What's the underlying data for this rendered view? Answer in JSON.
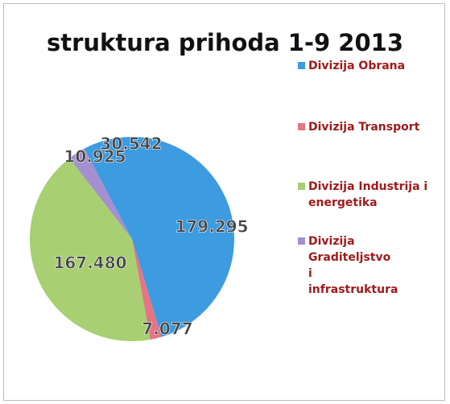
{
  "chart_data": {
    "type": "pie",
    "title": "struktura prihoda 1-9 2013",
    "categories": [
      "Divizija Obrana",
      "Divizija Transport",
      "Divizija Industrija i energetika",
      "Divizija Graditeljstvo i infrastruktura",
      null
    ],
    "values": [
      179295,
      7077,
      167480,
      10925,
      30542
    ],
    "value_labels": [
      "179.295",
      "7.077",
      "167.480",
      "10.925",
      "30.542"
    ],
    "colors": [
      "#3d9be0",
      "#e47585",
      "#a8cf72",
      "#a48fd0",
      "#3d9be0"
    ],
    "legend": "right"
  }
}
